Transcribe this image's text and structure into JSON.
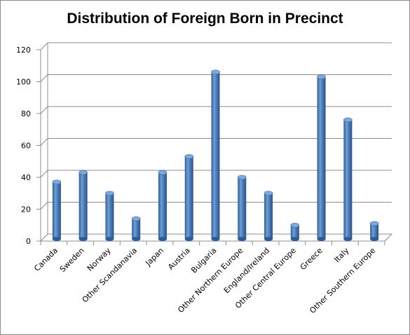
{
  "chart_data": {
    "type": "bar",
    "title": "Distribution of Foreign Born in Precinct",
    "xlabel": "",
    "ylabel": "",
    "ylim": [
      0,
      120
    ],
    "yticks": [
      0,
      20,
      40,
      60,
      80,
      100,
      120
    ],
    "grid": true,
    "legend": "none",
    "bar_color": "#4a7ebb",
    "categories": [
      "Canada",
      "Sweden",
      "Norway",
      "Other Scandanavia",
      "Japan",
      "Austria",
      "Bulgaria",
      "Other Northern Europe",
      "England/Ireland",
      "Other Central Europe",
      "Greece",
      "Italy",
      "Other Southern Europe"
    ],
    "values": [
      37,
      43,
      30,
      14,
      43,
      53,
      106,
      40,
      30,
      10,
      103,
      76,
      11
    ]
  }
}
